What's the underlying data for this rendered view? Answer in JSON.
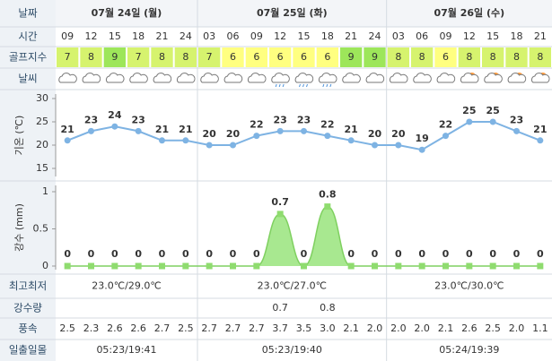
{
  "row_labels": {
    "date": "날짜",
    "time": "시간",
    "golf": "골프지수",
    "weather": "날씨",
    "minmax": "최고최저",
    "rain": "강수량",
    "wind": "풍속",
    "sun": "일출일몰"
  },
  "days": [
    {
      "label": "07월 24일 (월)",
      "minmax": "23.0℃/29.0℃",
      "sun": "05:23/19:41"
    },
    {
      "label": "07월 25일 (화)",
      "minmax": "23.0℃/27.0℃",
      "sun": "05:23/19:40"
    },
    {
      "label": "07월 26일 (수)",
      "minmax": "23.0℃/30.0℃",
      "sun": "05:24/19:39"
    }
  ],
  "times": [
    "09",
    "12",
    "15",
    "18",
    "21",
    "24",
    "03",
    "06",
    "09",
    "12",
    "15",
    "18",
    "21",
    "24",
    "03",
    "06",
    "09",
    "12",
    "15",
    "18",
    "21"
  ],
  "golf_index": [
    7,
    8,
    9,
    7,
    8,
    8,
    7,
    6,
    6,
    6,
    6,
    6,
    9,
    9,
    8,
    8,
    6,
    8,
    8,
    8,
    8
  ],
  "golf_colors": {
    "6": "#ffff80",
    "7": "#d6f36e",
    "8": "#d6f36e",
    "9": "#9de65a"
  },
  "chart_data": [
    {
      "type": "line",
      "ylabel": "기온 (℃)",
      "color": "#7eb3e3",
      "values": [
        21,
        23,
        24,
        23,
        21,
        21,
        20,
        20,
        22,
        23,
        23,
        22,
        21,
        20,
        20,
        19,
        22,
        25,
        25,
        23,
        21
      ],
      "ylim": [
        15,
        30
      ],
      "yticks": [
        15,
        20,
        25,
        30
      ]
    },
    {
      "type": "area",
      "ylabel": "강수 (mm)",
      "color": "#8fdc6f",
      "values": [
        0,
        0,
        0,
        0,
        0,
        0,
        0,
        0,
        0,
        0.7,
        0,
        0.8,
        0,
        0,
        0,
        0,
        0,
        0,
        0,
        0,
        0
      ],
      "ylim": [
        0,
        1
      ],
      "yticks": [
        0,
        0.5,
        1
      ]
    }
  ],
  "rain_amount": [
    null,
    null,
    null,
    null,
    null,
    null,
    null,
    null,
    null,
    0.7,
    null,
    0.8,
    null,
    null,
    null,
    null,
    null,
    null,
    null,
    null,
    null
  ],
  "wind": [
    "2.5",
    "2.3",
    "2.6",
    "2.6",
    "2.7",
    "2.5",
    "2.7",
    "2.7",
    "2.7",
    "3.7",
    "3.5",
    "3.0",
    "2.1",
    "2.0",
    "2.0",
    "2.0",
    "2.1",
    "2.6",
    "2.5",
    "2.0",
    "1.1"
  ]
}
